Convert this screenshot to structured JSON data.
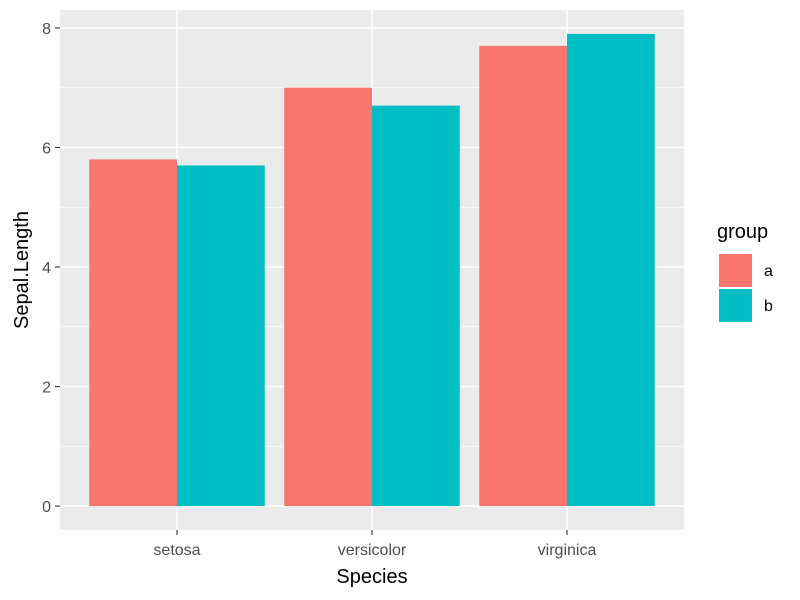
{
  "chart_data": {
    "type": "bar",
    "categories": [
      "setosa",
      "versicolor",
      "virginica"
    ],
    "series": [
      {
        "name": "a",
        "values": [
          5.8,
          7.0,
          7.7
        ],
        "color": "#F8766D"
      },
      {
        "name": "b",
        "values": [
          5.7,
          6.7,
          7.9
        ],
        "color": "#00BFC4"
      }
    ],
    "xlabel": "Species",
    "ylabel": "Sepal.Length",
    "ylim": [
      -0.4,
      8.3
    ],
    "yticks": [
      0,
      2,
      4,
      6,
      8
    ],
    "legend_title": "group",
    "legend_position": "right",
    "panel_background": "#EBEBEB",
    "grid": true
  }
}
